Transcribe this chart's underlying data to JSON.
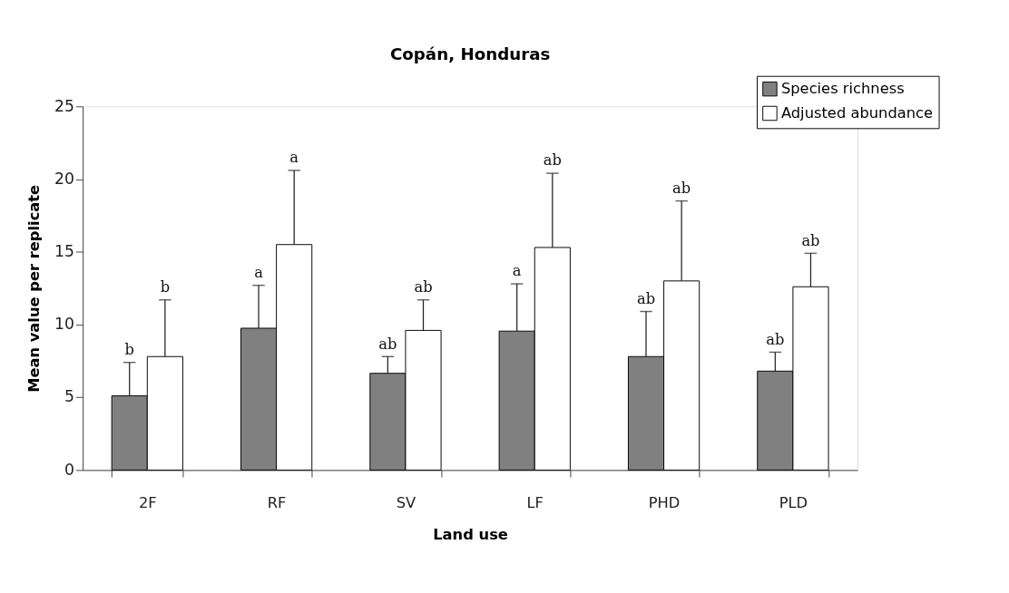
{
  "chart_data": {
    "type": "bar",
    "title": "Copán, Honduras",
    "xlabel": "Land use",
    "ylabel": "Mean value per replicate",
    "categories": [
      "2F",
      "RF",
      "SV",
      "LF",
      "PHD",
      "PLD"
    ],
    "series": [
      {
        "name": "Species richness",
        "color": "#808080",
        "values": [
          5.1,
          9.75,
          6.65,
          9.55,
          7.8,
          6.8
        ],
        "errors": [
          [
            5.1,
            7.4
          ],
          [
            9.75,
            12.7
          ],
          [
            6.65,
            7.8
          ],
          [
            9.55,
            12.8
          ],
          [
            7.8,
            10.9
          ],
          [
            6.8,
            8.1
          ]
        ]
      },
      {
        "name": "Adjusted abundance",
        "color": "#ffffff",
        "values": [
          7.8,
          15.5,
          9.6,
          15.3,
          13.0,
          12.6
        ],
        "errors": [
          [
            7.8,
            11.7
          ],
          [
            15.5,
            20.6
          ],
          [
            9.6,
            11.7
          ],
          [
            15.3,
            20.4
          ],
          [
            13.0,
            18.5
          ],
          [
            12.6,
            14.9
          ]
        ]
      }
    ],
    "annotations": [
      "b",
      "b",
      "a",
      "a",
      "ab",
      "ab",
      "a",
      "ab",
      "ab",
      "ab",
      "ab",
      "ab"
    ],
    "ylim": [
      0,
      25
    ],
    "yticks": [
      0,
      5,
      10,
      15,
      20,
      25
    ],
    "grid": false,
    "legend": "top right"
  }
}
